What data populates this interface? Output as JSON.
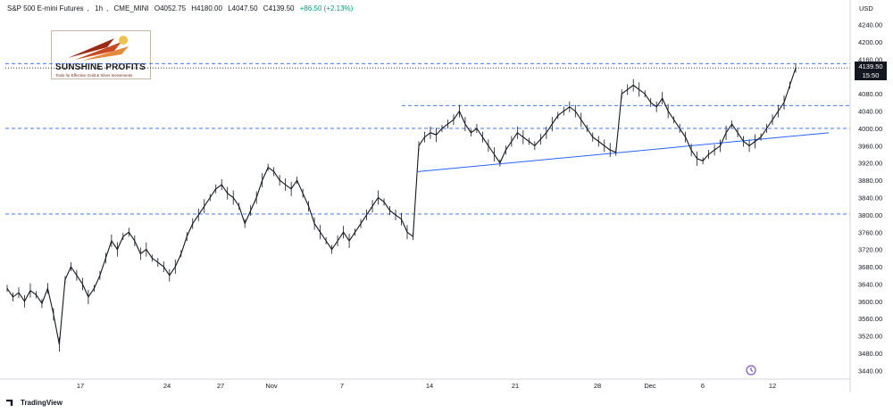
{
  "header": {
    "symbol": "S&P 500 E-mini Futures",
    "interval": "1h",
    "exchange": "CME_MINI",
    "open": "O4052.75",
    "high": "H4180.00",
    "low": "L4047.50",
    "close": "C4139.50",
    "change": "+86.50 (+2.13%)"
  },
  "logo": {
    "name": "SUNSHINE PROFITS",
    "tagline": "Tools for Effective Gold & Silver Investments"
  },
  "price_label": {
    "price": "4139.50",
    "countdown": "15:50"
  },
  "footer": {
    "brand": "TradingView"
  },
  "colors": {
    "candle": "#131722",
    "trendline": "#2962ff",
    "level_line": "#2962ff",
    "price_line": "#131722",
    "axis_text": "#131722",
    "border": "#d1d4dc"
  },
  "chart_data": {
    "type": "line",
    "title": "S&P 500 E-mini Futures, 1h, CME_MINI",
    "y_axis": {
      "unit": "USD",
      "range": [
        3420,
        4260
      ],
      "ticks": [
        "4240.00",
        "4200.00",
        "4160.00",
        "4120.00",
        "4080.00",
        "4040.00",
        "4000.00",
        "3960.00",
        "3920.00",
        "3880.00",
        "3840.00",
        "3800.00",
        "3760.00",
        "3720.00",
        "3680.00",
        "3640.00",
        "3600.00",
        "3560.00",
        "3520.00",
        "3480.00",
        "3440.00"
      ]
    },
    "x_axis": {
      "ticks": [
        "17",
        "24",
        "27",
        "Nov",
        "7",
        "14",
        "21",
        "28",
        "Dec",
        "6",
        "12"
      ]
    },
    "series": [
      {
        "values": [
          3630,
          3610,
          3620,
          3600,
          3625,
          3615,
          3595,
          3630,
          3570,
          3500,
          3650,
          3680,
          3660,
          3640,
          3610,
          3630,
          3660,
          3700,
          3740,
          3720,
          3750,
          3760,
          3740,
          3710,
          3720,
          3700,
          3690,
          3680,
          3660,
          3680,
          3710,
          3750,
          3780,
          3800,
          3820,
          3840,
          3860,
          3870,
          3850,
          3840,
          3820,
          3780,
          3810,
          3840,
          3880,
          3910,
          3900,
          3880,
          3870,
          3860,
          3880,
          3850,
          3820,
          3780,
          3760,
          3740,
          3720,
          3740,
          3760,
          3740,
          3760,
          3780,
          3800,
          3820,
          3840,
          3830,
          3810,
          3800,
          3790,
          3760,
          3750,
          3960,
          3980,
          3990,
          3985,
          4000,
          4010,
          4020,
          4040,
          4010,
          3990,
          4000,
          3980,
          3960,
          3940,
          3920,
          3950,
          3970,
          3990,
          3980,
          3970,
          3960,
          3975,
          3990,
          4010,
          4030,
          4040,
          4050,
          4040,
          4020,
          4000,
          3980,
          3970,
          3960,
          3950,
          3945,
          4080,
          4090,
          4100,
          4090,
          4080,
          4060,
          4050,
          4070,
          4040,
          4020,
          4000,
          3980,
          3950,
          3930,
          3925,
          3940,
          3950,
          3960,
          3990,
          4010,
          3990,
          3970,
          3960,
          3970,
          3980,
          4000,
          4020,
          4040,
          4060,
          4100,
          4139.5
        ]
      }
    ],
    "horizontal_levels": [
      4150,
      4140,
      4053,
      4000,
      3802
    ],
    "trendline": {
      "from": 3900,
      "to": 3990
    },
    "grid": false
  }
}
